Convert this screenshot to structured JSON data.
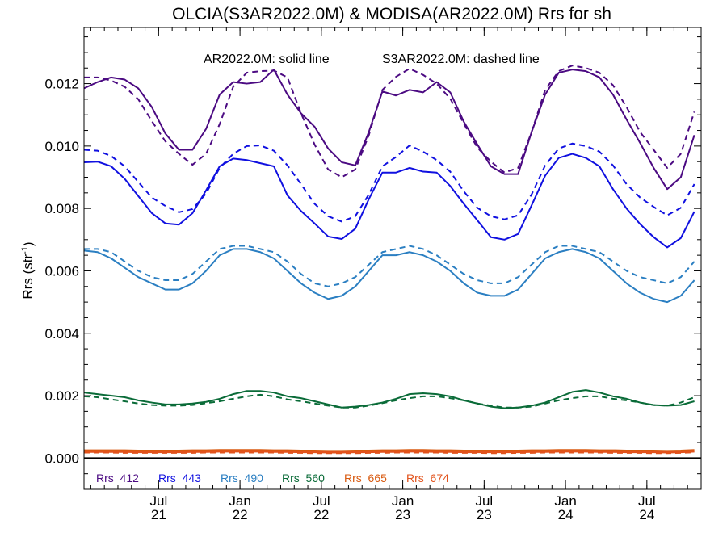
{
  "chart_data": {
    "type": "line",
    "title": "OLCIA(S3AR2022.0M) & MODISA(AR2022.0M)  Rrs for sh",
    "ylabel": "Rrs (str",
    "ylabel_sup": "-1",
    "ylabel_close": ")",
    "annotation_solid": "AR2022.0M: solid line",
    "annotation_dashed": "S3AR2022.0M: dashed line",
    "xlim": [
      0,
      45.5
    ],
    "ylim": [
      -0.001,
      0.0138
    ],
    "yticks": [
      "0.000",
      "0.002",
      "0.004",
      "0.006",
      "0.008",
      "0.010",
      "0.012"
    ],
    "ytick_values": [
      0.0,
      0.002,
      0.004,
      0.006,
      0.008,
      0.01,
      0.012
    ],
    "xticks": [
      {
        "pos": 5.5,
        "month": "Jul",
        "year": "21"
      },
      {
        "pos": 11.5,
        "month": "Jan",
        "year": "22"
      },
      {
        "pos": 17.5,
        "month": "Jul",
        "year": "22"
      },
      {
        "pos": 23.5,
        "month": "Jan",
        "year": "23"
      },
      {
        "pos": 29.5,
        "month": "Jul",
        "year": "23"
      },
      {
        "pos": 35.5,
        "month": "Jan",
        "year": "24"
      },
      {
        "pos": 41.5,
        "month": "Jul",
        "year": "24"
      }
    ],
    "zero_line": true,
    "series": [
      {
        "name": "Rrs_412",
        "color": "#4b0a82",
        "solid": [
          0.01185,
          0.01205,
          0.0122,
          0.01213,
          0.01185,
          0.01125,
          0.0104,
          0.00988,
          0.00988,
          0.01055,
          0.01165,
          0.01205,
          0.012,
          0.01205,
          0.01245,
          0.01165,
          0.01105,
          0.01062,
          0.00992,
          0.00948,
          0.00938,
          0.01045,
          0.01175,
          0.01162,
          0.0118,
          0.01172,
          0.01205,
          0.01172,
          0.01078,
          0.01005,
          0.00935,
          0.0091,
          0.0091,
          0.01045,
          0.01165,
          0.01235,
          0.01245,
          0.0124,
          0.0122,
          0.01165,
          0.01085,
          0.0101,
          0.0093,
          0.00862,
          0.009,
          0.01035
        ],
        "dashed": [
          0.0122,
          0.0122,
          0.0121,
          0.0119,
          0.0115,
          0.0108,
          0.01015,
          0.00975,
          0.0094,
          0.00975,
          0.0107,
          0.0119,
          0.01235,
          0.0124,
          0.01242,
          0.0122,
          0.01105,
          0.01005,
          0.00925,
          0.009,
          0.00925,
          0.01035,
          0.0118,
          0.01222,
          0.01248,
          0.01228,
          0.012,
          0.01152,
          0.01072,
          0.00995,
          0.0095,
          0.00915,
          0.0093,
          0.01045,
          0.0118,
          0.0124,
          0.01258,
          0.0125,
          0.01235,
          0.01195,
          0.01125,
          0.01045,
          0.00988,
          0.0093,
          0.00975,
          0.0111
        ]
      },
      {
        "name": "Rrs_443",
        "color": "#1010e0",
        "solid": [
          0.00948,
          0.0095,
          0.00935,
          0.00895,
          0.0084,
          0.00785,
          0.00752,
          0.00748,
          0.00785,
          0.00858,
          0.00935,
          0.0096,
          0.00955,
          0.00945,
          0.00935,
          0.00842,
          0.00792,
          0.00752,
          0.0071,
          0.00702,
          0.00735,
          0.0083,
          0.00915,
          0.00915,
          0.0093,
          0.00918,
          0.00915,
          0.00872,
          0.00815,
          0.00762,
          0.00708,
          0.007,
          0.00718,
          0.0081,
          0.00905,
          0.00962,
          0.00975,
          0.00962,
          0.00935,
          0.00862,
          0.008,
          0.0075,
          0.00708,
          0.00675,
          0.00705,
          0.0079
        ],
        "dashed": [
          0.00988,
          0.00985,
          0.00968,
          0.00935,
          0.00885,
          0.00835,
          0.00808,
          0.00788,
          0.00798,
          0.00848,
          0.0093,
          0.00975,
          0.01,
          0.01002,
          0.00985,
          0.00938,
          0.00878,
          0.00815,
          0.00775,
          0.00758,
          0.00775,
          0.00845,
          0.00935,
          0.00965,
          0.01002,
          0.00982,
          0.00955,
          0.00918,
          0.00855,
          0.00802,
          0.00775,
          0.00765,
          0.00778,
          0.00845,
          0.00938,
          0.00992,
          0.01008,
          0.01,
          0.00982,
          0.00938,
          0.00878,
          0.00835,
          0.00805,
          0.00778,
          0.00802,
          0.00878
        ]
      },
      {
        "name": "Rrs_490",
        "color": "#2b7fc2",
        "solid": [
          0.00665,
          0.0066,
          0.0064,
          0.0061,
          0.0058,
          0.0056,
          0.0054,
          0.0054,
          0.0056,
          0.006,
          0.0065,
          0.0067,
          0.0067,
          0.0066,
          0.0064,
          0.006,
          0.0056,
          0.0053,
          0.0051,
          0.0052,
          0.0055,
          0.006,
          0.0065,
          0.0065,
          0.0066,
          0.0065,
          0.0063,
          0.006,
          0.0056,
          0.0053,
          0.0052,
          0.0052,
          0.0054,
          0.0059,
          0.0064,
          0.0066,
          0.0067,
          0.0066,
          0.0064,
          0.006,
          0.0056,
          0.0053,
          0.0051,
          0.005,
          0.0052,
          0.0057
        ],
        "dashed": [
          0.0067,
          0.0067,
          0.0066,
          0.0063,
          0.006,
          0.0058,
          0.0057,
          0.0057,
          0.0059,
          0.0063,
          0.0067,
          0.0068,
          0.0068,
          0.0067,
          0.0066,
          0.0063,
          0.0059,
          0.0056,
          0.0055,
          0.0056,
          0.0058,
          0.0062,
          0.0066,
          0.0067,
          0.0068,
          0.0067,
          0.0065,
          0.0062,
          0.0059,
          0.0057,
          0.0056,
          0.0056,
          0.0058,
          0.0062,
          0.0066,
          0.0068,
          0.0068,
          0.0067,
          0.0066,
          0.0063,
          0.006,
          0.0058,
          0.0057,
          0.0056,
          0.0058,
          0.0063
        ]
      },
      {
        "name": "Rrs_560",
        "color": "#0a6b38",
        "solid": [
          0.0021,
          0.00205,
          0.002,
          0.00195,
          0.00185,
          0.00178,
          0.00172,
          0.00172,
          0.00175,
          0.0018,
          0.0019,
          0.00205,
          0.00215,
          0.00215,
          0.0021,
          0.00198,
          0.00192,
          0.00182,
          0.00172,
          0.00162,
          0.00165,
          0.0017,
          0.00178,
          0.0019,
          0.00205,
          0.00208,
          0.00205,
          0.00198,
          0.00185,
          0.00175,
          0.00165,
          0.0016,
          0.00162,
          0.00168,
          0.00178,
          0.00195,
          0.00212,
          0.00218,
          0.0021,
          0.00198,
          0.0019,
          0.00178,
          0.0017,
          0.00168,
          0.0017,
          0.00182
        ],
        "dashed": [
          0.00198,
          0.00195,
          0.00188,
          0.00182,
          0.00175,
          0.0017,
          0.00168,
          0.00168,
          0.0017,
          0.00176,
          0.00182,
          0.0019,
          0.00198,
          0.00203,
          0.00198,
          0.00188,
          0.00182,
          0.00175,
          0.00168,
          0.00162,
          0.00162,
          0.00168,
          0.00176,
          0.00185,
          0.00192,
          0.00198,
          0.00198,
          0.00192,
          0.00185,
          0.00175,
          0.00168,
          0.00162,
          0.00162,
          0.00165,
          0.00175,
          0.00185,
          0.00192,
          0.00198,
          0.00198,
          0.0019,
          0.00185,
          0.00178,
          0.0017,
          0.00168,
          0.00178,
          0.00195
        ]
      },
      {
        "name": "Rrs_665",
        "color": "#d85a10",
        "solid": [
          0.00024,
          0.00024,
          0.00024,
          0.00024,
          0.00023,
          0.00023,
          0.00023,
          0.00023,
          0.00024,
          0.00024,
          0.00025,
          0.00025,
          0.00025,
          0.00025,
          0.00024,
          0.00024,
          0.00023,
          0.00023,
          0.00022,
          0.00022,
          0.00023,
          0.00023,
          0.00024,
          0.00024,
          0.00025,
          0.00025,
          0.00024,
          0.00024,
          0.00023,
          0.00023,
          0.00023,
          0.00023,
          0.00023,
          0.00024,
          0.00024,
          0.00025,
          0.00025,
          0.00025,
          0.00024,
          0.00024,
          0.00023,
          0.00023,
          0.00023,
          0.00022,
          0.00023,
          0.00025
        ],
        "dashed": [
          0.00022,
          0.00022,
          0.00022,
          0.00021,
          0.00021,
          0.00021,
          0.00021,
          0.00021,
          0.00021,
          0.00022,
          0.00022,
          0.00022,
          0.00022,
          0.00022,
          0.00022,
          0.00021,
          0.00021,
          0.0002,
          0.0002,
          0.0002,
          0.0002,
          0.00021,
          0.00021,
          0.00022,
          0.00022,
          0.00022,
          0.00022,
          0.00021,
          0.00021,
          0.00021,
          0.0002,
          0.0002,
          0.00021,
          0.00021,
          0.00022,
          0.00022,
          0.00022,
          0.00022,
          0.00022,
          0.00021,
          0.00021,
          0.00021,
          0.0002,
          0.0002,
          0.00021,
          0.00023
        ]
      },
      {
        "name": "Rrs_674",
        "color": "#e2531c",
        "solid": [
          0.00021,
          0.00021,
          0.00021,
          0.00021,
          0.0002,
          0.0002,
          0.0002,
          0.0002,
          0.00021,
          0.00021,
          0.00022,
          0.00022,
          0.00022,
          0.00022,
          0.00021,
          0.00021,
          0.0002,
          0.0002,
          0.00019,
          0.00019,
          0.0002,
          0.0002,
          0.00021,
          0.00021,
          0.00022,
          0.00022,
          0.00021,
          0.00021,
          0.0002,
          0.0002,
          0.0002,
          0.0002,
          0.0002,
          0.00021,
          0.00021,
          0.00022,
          0.00022,
          0.00022,
          0.00021,
          0.00021,
          0.0002,
          0.0002,
          0.0002,
          0.00019,
          0.0002,
          0.00022
        ],
        "dashed": [
          0.00019,
          0.00019,
          0.00019,
          0.00018,
          0.00018,
          0.00018,
          0.00018,
          0.00018,
          0.00018,
          0.00019,
          0.00019,
          0.00019,
          0.00019,
          0.00019,
          0.00019,
          0.00018,
          0.00018,
          0.00017,
          0.00017,
          0.00017,
          0.00017,
          0.00018,
          0.00018,
          0.00019,
          0.00019,
          0.00019,
          0.00019,
          0.00018,
          0.00018,
          0.00018,
          0.00017,
          0.00017,
          0.00018,
          0.00018,
          0.00019,
          0.00019,
          0.00019,
          0.00019,
          0.00019,
          0.00018,
          0.00018,
          0.00018,
          0.00017,
          0.00017,
          0.00018,
          0.0002
        ]
      }
    ]
  }
}
